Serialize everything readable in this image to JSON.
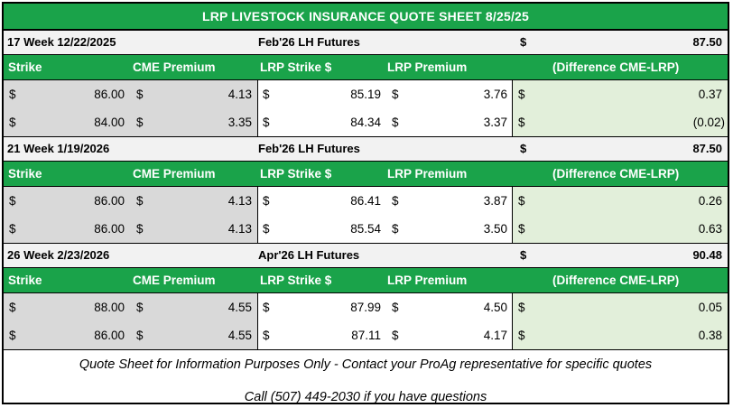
{
  "title": "LRP LIVESTOCK INSURANCE QUOTE SHEET 8/25/25",
  "columns": [
    "Strike",
    "CME Premium",
    "LRP Strike $",
    "LRP Premium",
    "(Difference CME-LRP)"
  ],
  "currency_symbol": "$",
  "sections": [
    {
      "label": "17 Week 12/22/2025",
      "futures": "Feb'26 LH Futures",
      "futures_price": "87.50",
      "rows": [
        {
          "strike": "86.00",
          "cme_premium": "4.13",
          "lrp_strike": "85.19",
          "lrp_premium": "3.76",
          "difference": "0.37"
        },
        {
          "strike": "84.00",
          "cme_premium": "3.35",
          "lrp_strike": "84.34",
          "lrp_premium": "3.37",
          "difference": "(0.02)"
        }
      ]
    },
    {
      "label": "21 Week 1/19/2026",
      "futures": "Feb'26 LH Futures",
      "futures_price": "87.50",
      "rows": [
        {
          "strike": "86.00",
          "cme_premium": "4.13",
          "lrp_strike": "86.41",
          "lrp_premium": "3.87",
          "difference": "0.26"
        },
        {
          "strike": "86.00",
          "cme_premium": "4.13",
          "lrp_strike": "85.54",
          "lrp_premium": "3.50",
          "difference": "0.63"
        }
      ]
    },
    {
      "label": "26 Week 2/23/2026",
      "futures": "Apr'26 LH Futures",
      "futures_price": "90.48",
      "rows": [
        {
          "strike": "88.00",
          "cme_premium": "4.55",
          "lrp_strike": "87.99",
          "lrp_premium": "4.50",
          "difference": "0.05"
        },
        {
          "strike": "86.00",
          "cme_premium": "4.55",
          "lrp_strike": "87.11",
          "lrp_premium": "4.17",
          "difference": "0.38"
        }
      ]
    }
  ],
  "footer": {
    "disclaimer": "Quote Sheet for Information Purposes Only - Contact your ProAg representative for specific quotes",
    "contact": "Call (507) 449-2030 if you have questions"
  }
}
